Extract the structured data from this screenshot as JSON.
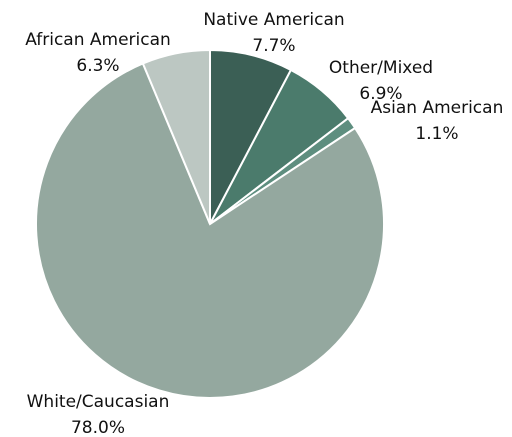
{
  "chart_data": {
    "type": "pie",
    "categories": [
      "Native American",
      "Other/Mixed",
      "Asian American",
      "White/Caucasian",
      "African American"
    ],
    "values": [
      7.7,
      6.9,
      1.1,
      78.0,
      6.3
    ],
    "value_labels": [
      "7.7%",
      "6.9%",
      "1.1%",
      "78.0%",
      "6.3%"
    ],
    "colors": [
      "#3b5f55",
      "#4b7b6c",
      "#5e8e7f",
      "#94a89f",
      "#bcc7c2"
    ]
  }
}
